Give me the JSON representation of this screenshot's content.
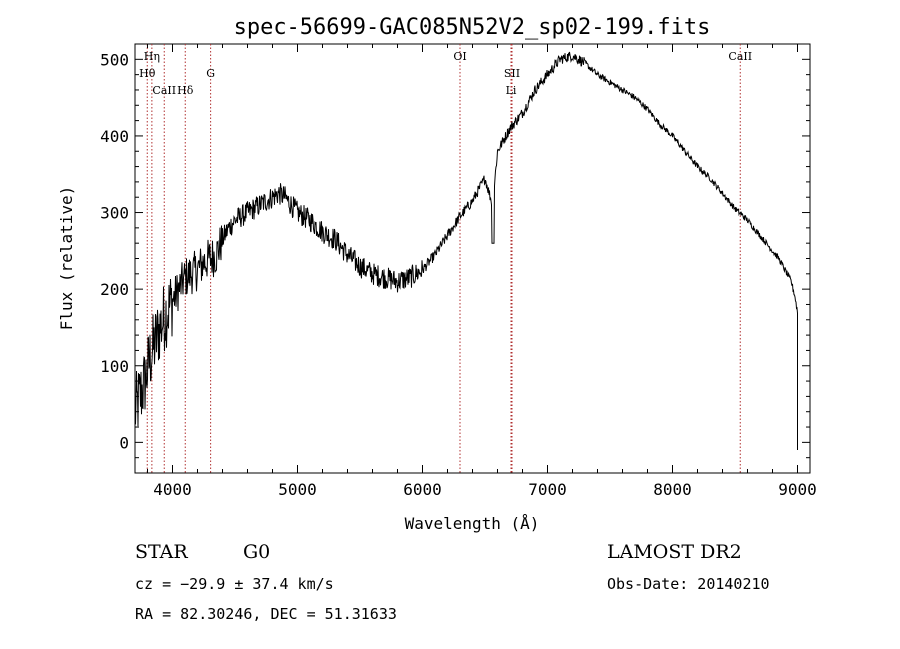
{
  "chart_data": {
    "type": "line",
    "title": "spec-56699-GAC085N52V2_sp02-199.fits",
    "xlabel": "Wavelength (Å)",
    "ylabel": "Flux (relative)",
    "xlim": [
      3700,
      9100
    ],
    "ylim": [
      -40,
      520
    ],
    "xticks": [
      4000,
      5000,
      6000,
      7000,
      8000,
      9000
    ],
    "xtick_labels": [
      "4000",
      "5000",
      "6000",
      "7000",
      "8000",
      "9000"
    ],
    "yticks": [
      0,
      100,
      200,
      300,
      400,
      500
    ],
    "ytick_labels": [
      "0",
      "100",
      "200",
      "300",
      "400",
      "500"
    ],
    "grid": false,
    "series": [
      {
        "x": [
          3700,
          3740,
          3780,
          3820,
          3860,
          3900,
          3950,
          4000,
          4050,
          4100,
          4150,
          4200,
          4250,
          4300,
          4350,
          4400,
          4450,
          4500,
          4600,
          4700,
          4800,
          4850,
          4900,
          5000,
          5100,
          5200,
          5300,
          5400,
          5500,
          5600,
          5700,
          5800,
          5900,
          6000,
          6100,
          6200,
          6300,
          6400,
          6500,
          6560,
          6600,
          6700,
          6800,
          6900,
          7000,
          7050,
          7100,
          7200,
          7300,
          7400,
          7500,
          7600,
          7700,
          7800,
          7900,
          8000,
          8100,
          8200,
          8300,
          8400,
          8500,
          8600,
          8700,
          8800,
          8850,
          8900,
          8950,
          8980,
          9000
        ],
        "y": [
          40,
          60,
          80,
          110,
          130,
          150,
          170,
          185,
          200,
          215,
          220,
          225,
          235,
          240,
          245,
          265,
          280,
          290,
          300,
          310,
          320,
          325,
          320,
          300,
          290,
          275,
          265,
          245,
          230,
          220,
          215,
          210,
          215,
          225,
          245,
          270,
          295,
          315,
          345,
          310,
          380,
          410,
          430,
          460,
          480,
          490,
          500,
          505,
          495,
          480,
          470,
          460,
          450,
          435,
          415,
          400,
          380,
          360,
          345,
          325,
          305,
          290,
          270,
          250,
          240,
          225,
          210,
          190,
          170
        ]
      }
    ],
    "annotations": {
      "lines": [
        {
          "label": "CaII",
          "x": 3934,
          "row": 3
        },
        {
          "label": "Hη",
          "x": 3835,
          "row": 1
        },
        {
          "label": "Hθ",
          "x": 3798,
          "row": 2
        },
        {
          "label": "Hδ",
          "x": 4102,
          "row": 3
        },
        {
          "label": "G",
          "x": 4305,
          "row": 2
        },
        {
          "label": "OI",
          "x": 6300,
          "row": 1
        },
        {
          "label": "SII",
          "x": 6716,
          "row": 2
        },
        {
          "label": "Li",
          "x": 6708,
          "row": 3
        },
        {
          "label": "CaII",
          "x": 8542,
          "row": 1
        }
      ],
      "line_color": "#b03030"
    }
  },
  "info": {
    "object_class": "STAR",
    "subclass": "G0",
    "survey": "LAMOST DR2",
    "cz": "cz = −29.9 ± 37.4 km/s",
    "obs_date": "Obs-Date: 20140210",
    "coords": "RA =  82.30246, DEC =  51.31633"
  }
}
